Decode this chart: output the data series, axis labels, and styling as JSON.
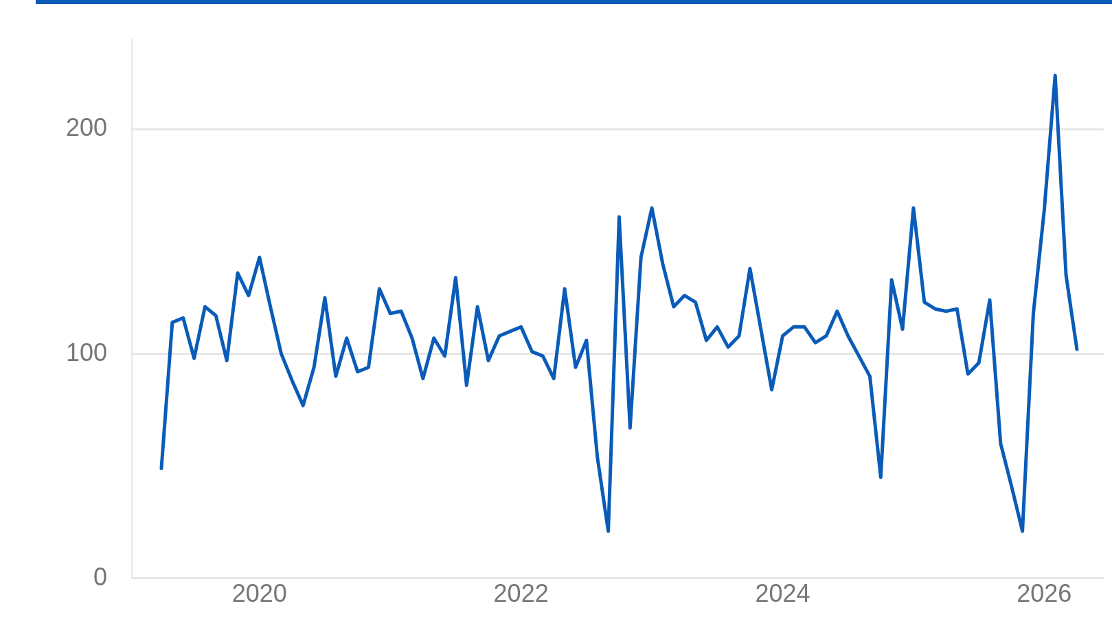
{
  "chart_data": {
    "type": "line",
    "x": [
      "2019-04",
      "2019-05",
      "2019-06",
      "2019-07",
      "2019-08",
      "2019-09",
      "2019-10",
      "2019-11",
      "2019-12",
      "2020-01",
      "2020-02",
      "2020-03",
      "2020-04",
      "2020-05",
      "2020-06",
      "2020-07",
      "2020-08",
      "2020-09",
      "2020-10",
      "2020-11",
      "2020-12",
      "2021-01",
      "2021-02",
      "2021-03",
      "2021-04",
      "2021-05",
      "2021-06",
      "2021-07",
      "2021-08",
      "2021-09",
      "2021-10",
      "2021-11",
      "2021-12",
      "2022-01",
      "2022-02",
      "2022-03",
      "2022-04",
      "2022-05",
      "2022-06",
      "2022-07",
      "2022-08",
      "2022-09",
      "2022-10",
      "2022-11",
      "2022-12",
      "2023-01",
      "2023-02",
      "2023-03",
      "2023-04",
      "2023-05",
      "2023-06",
      "2023-07",
      "2023-08",
      "2023-09",
      "2023-10",
      "2023-11",
      "2023-12",
      "2024-01",
      "2024-02",
      "2024-03",
      "2024-04",
      "2024-05",
      "2024-06",
      "2024-07",
      "2024-08",
      "2024-09",
      "2024-10",
      "2024-11",
      "2024-12",
      "2025-01",
      "2025-02",
      "2025-03",
      "2025-04",
      "2025-05",
      "2025-06",
      "2025-07",
      "2025-08",
      "2025-09",
      "2025-10",
      "2025-11",
      "2025-12",
      "2026-01",
      "2026-02",
      "2026-03",
      "2026-04"
    ],
    "series": [
      {
        "color": "#0a5cb8",
        "values": [
          49,
          114,
          116,
          98,
          121,
          117,
          97,
          136,
          126,
          143,
          121,
          100,
          88,
          77,
          94,
          125,
          90,
          107,
          92,
          94,
          129,
          118,
          119,
          107,
          89,
          107,
          99,
          134,
          86,
          121,
          97,
          108,
          110,
          112,
          101,
          99,
          89,
          129,
          94,
          106,
          54,
          21,
          161,
          67,
          143,
          165,
          140,
          121,
          126,
          123,
          106,
          112,
          103,
          108,
          138,
          111,
          84,
          108,
          112,
          112,
          105,
          108,
          119,
          108,
          99,
          90,
          45,
          133,
          111,
          165,
          123,
          120,
          119,
          120,
          91,
          96,
          124,
          60,
          41,
          21,
          118,
          164,
          224,
          135,
          102
        ]
      }
    ],
    "xlim": [
      "2019-01-10",
      "2026-06-15"
    ],
    "xticks": [
      "2020",
      "2022",
      "2024",
      "2026"
    ],
    "ylim": [
      0,
      240
    ],
    "yticks": [
      0,
      100,
      200
    ],
    "grid": "y",
    "legend": false,
    "marker": "none",
    "line_style": "solid"
  }
}
